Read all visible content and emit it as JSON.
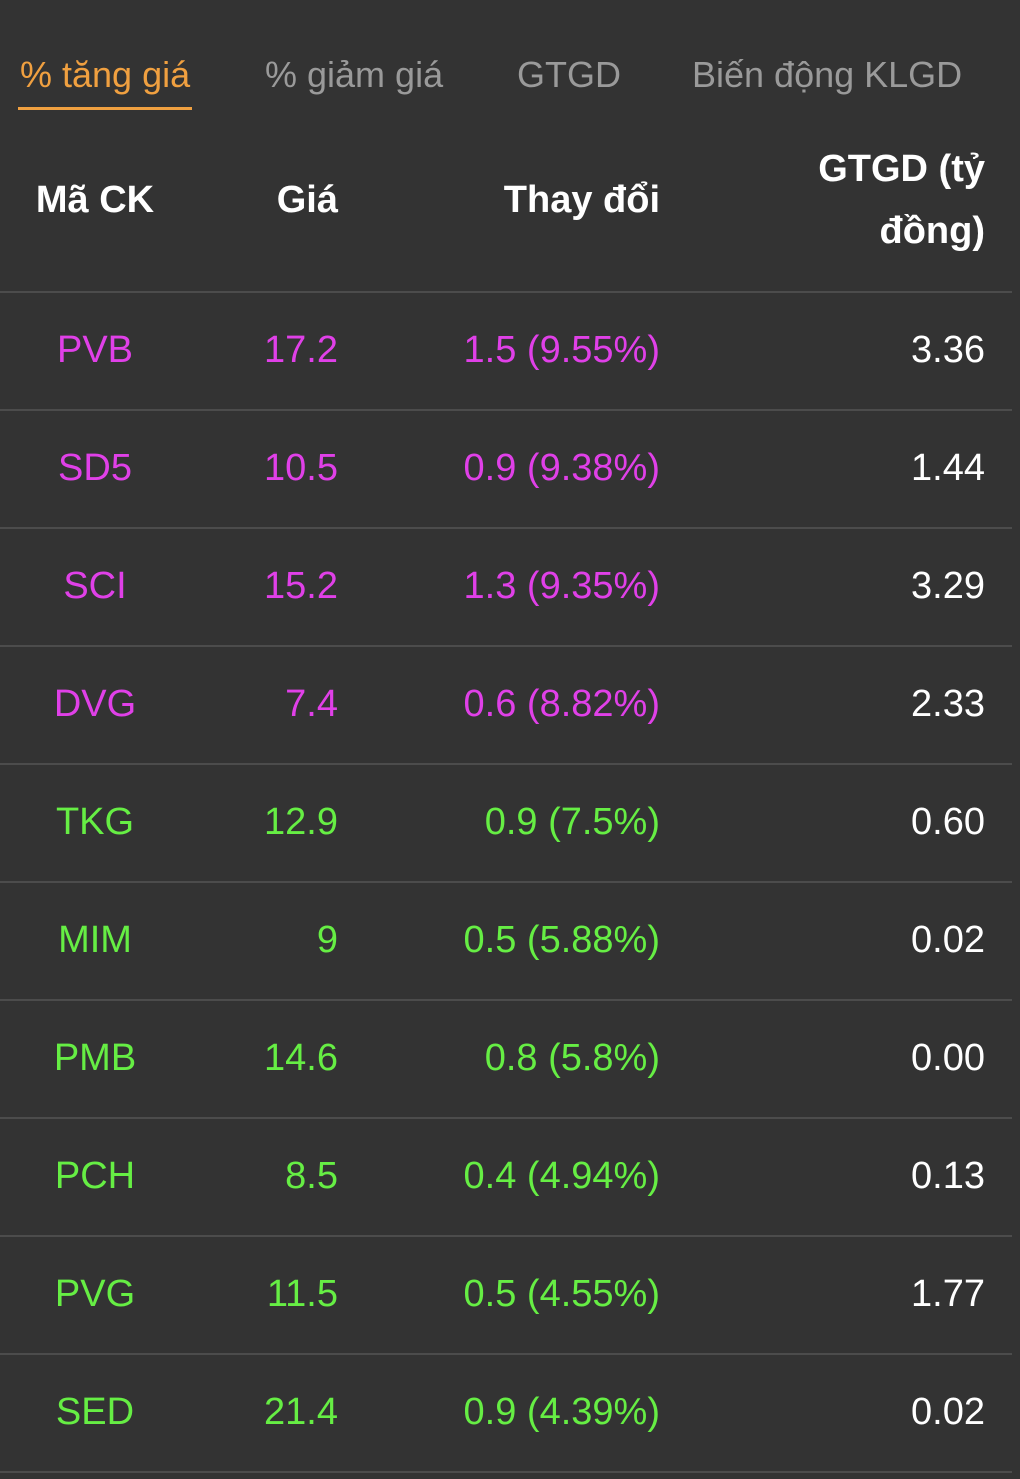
{
  "tabs": [
    "% tăng giá",
    "% giảm giá",
    "GTGD",
    "Biến động KLGD"
  ],
  "active_tab": 0,
  "table": {
    "headers": [
      "Mã CK",
      "Giá",
      "Thay đổi",
      "GTGD (tỷ đồng)"
    ],
    "rows": [
      {
        "color": "#e040e8",
        "cells": [
          "PVB",
          "17.2",
          "1.5 (9.55%)",
          "3.36"
        ]
      },
      {
        "color": "#e040e8",
        "cells": [
          "SD5",
          "10.5",
          "0.9 (9.38%)",
          "1.44"
        ]
      },
      {
        "color": "#e040e8",
        "cells": [
          "SCI",
          "15.2",
          "1.3 (9.35%)",
          "3.29"
        ]
      },
      {
        "color": "#e040e8",
        "cells": [
          "DVG",
          "7.4",
          "0.6 (8.82%)",
          "2.33"
        ]
      },
      {
        "color": "#66ee44",
        "cells": [
          "TKG",
          "12.9",
          "0.9 (7.5%)",
          "0.60"
        ]
      },
      {
        "color": "#66ee44",
        "cells": [
          "MIM",
          "9",
          "0.5 (5.88%)",
          "0.02"
        ]
      },
      {
        "color": "#66ee44",
        "cells": [
          "PMB",
          "14.6",
          "0.8 (5.8%)",
          "0.00"
        ]
      },
      {
        "color": "#66ee44",
        "cells": [
          "PCH",
          "8.5",
          "0.4 (4.94%)",
          "0.13"
        ]
      },
      {
        "color": "#66ee44",
        "cells": [
          "PVG",
          "11.5",
          "0.5 (4.55%)",
          "1.77"
        ]
      },
      {
        "color": "#66ee44",
        "cells": [
          "SED",
          "21.4",
          "0.9 (4.39%)",
          "0.02"
        ]
      }
    ]
  }
}
